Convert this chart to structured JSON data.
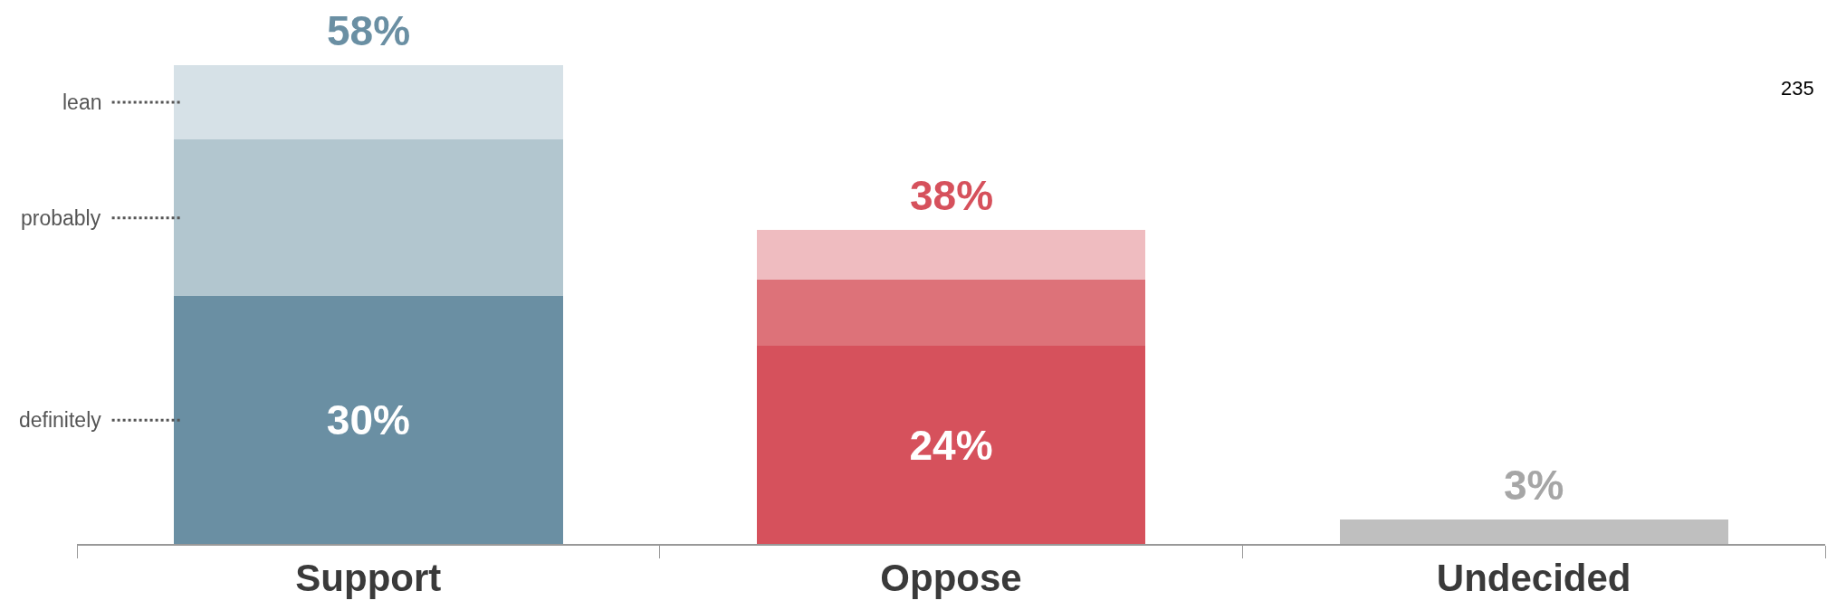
{
  "chart_data": {
    "type": "bar",
    "stacked": true,
    "categories": [
      "Support",
      "Oppose",
      "Undecided"
    ],
    "ylim": [
      0,
      58
    ],
    "tick_labels": "x",
    "series": [
      {
        "name": "definitely",
        "colors": [
          "#6a8fa3",
          "#d6515c",
          "#bfbfbf"
        ],
        "values": [
          30,
          24,
          3
        ],
        "value_labels": [
          "30%",
          "24%",
          null
        ]
      },
      {
        "name": "probably",
        "colors": [
          "#b2c6cf",
          "#dd7279",
          null
        ],
        "values": [
          19,
          8,
          null
        ]
      },
      {
        "name": "lean",
        "colors": [
          "#d6e1e7",
          "#efbcc0",
          null
        ],
        "values": [
          9,
          6,
          null
        ]
      }
    ],
    "totals": [
      "58%",
      "38%",
      "3%"
    ],
    "annotations": [
      "235"
    ]
  }
}
